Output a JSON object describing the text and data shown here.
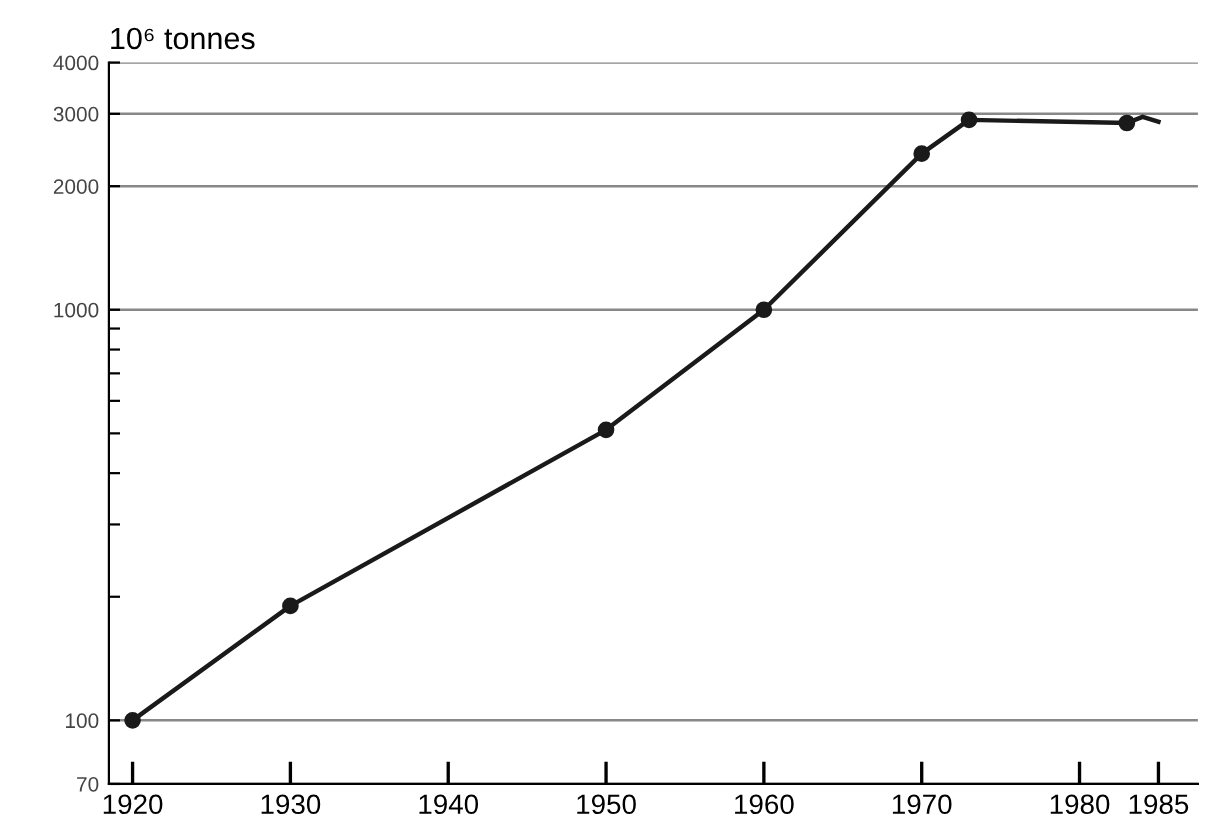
{
  "chart_data": {
    "type": "line",
    "title": "10⁶ tonnes",
    "log": "y",
    "grid": "y",
    "legend": false,
    "xlim": [
      1918.5,
      1987.5
    ],
    "xticks": [
      1920,
      1930,
      1940,
      1950,
      1960,
      1970,
      1980,
      1985
    ],
    "ylim": [
      70,
      4000
    ],
    "yticks": [
      70,
      100,
      {
        "value": 200,
        "label": null
      },
      {
        "value": 300,
        "label": null
      },
      {
        "value": 400,
        "label": null
      },
      {
        "value": 500,
        "label": null
      },
      {
        "value": 600,
        "label": null
      },
      {
        "value": 700,
        "label": null
      },
      {
        "value": 800,
        "label": null
      },
      {
        "value": 900,
        "label": null
      },
      1000,
      2000,
      3000,
      4000
    ],
    "series": [
      {
        "color": "#1a1a1a",
        "marker": "circle",
        "x": [
          1920,
          1930,
          1950,
          1960,
          1970,
          1973,
          1983
        ],
        "values": [
          100,
          190,
          510,
          1000,
          2400,
          2900,
          2850
        ]
      },
      {
        "color": "#1a1a1a",
        "marker": "none",
        "x": [
          1983,
          1984,
          1985
        ],
        "values": [
          2850,
          2950,
          2870
        ]
      }
    ]
  }
}
